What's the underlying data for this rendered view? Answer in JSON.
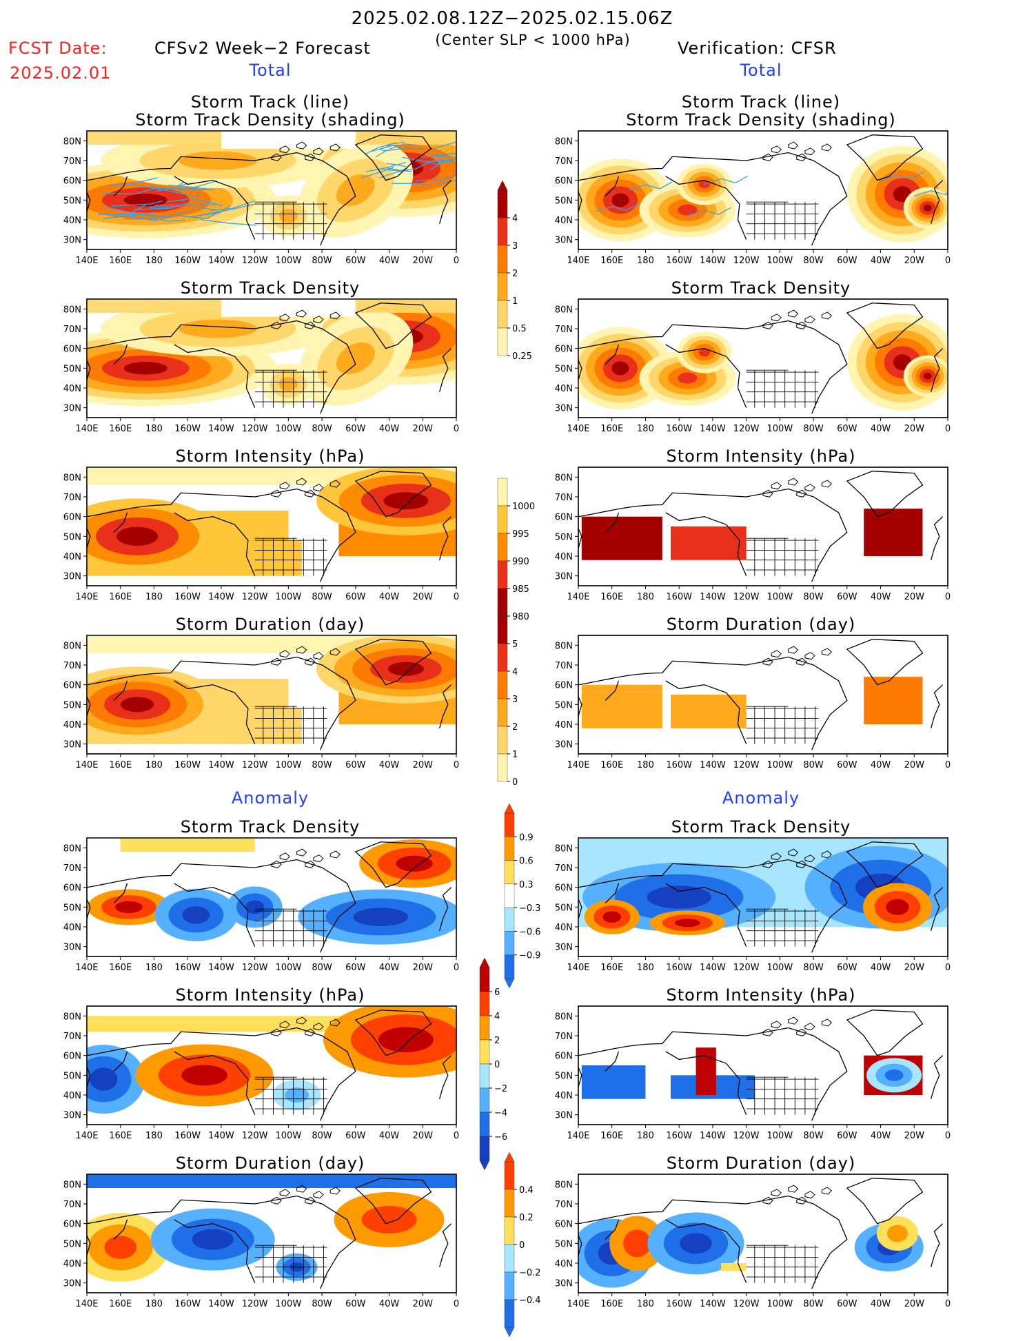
{
  "header": {
    "period": "2025.02.08.12Z−2025.02.15.06Z",
    "criterion": "(Center SLP < 1000 hPa)",
    "fcst_label": "FCST Date:",
    "fcst_date": "2025.02.01",
    "left_title": "CFSv2 Week−2 Forecast",
    "right_title": "Verification: CFSR"
  },
  "sections": {
    "total": "Total",
    "anomaly": "Anomaly"
  },
  "panel_titles": {
    "track_line": "Storm Track (line)",
    "track_shading": "Storm Track Density (shading)",
    "density": "Storm Track Density",
    "intensity": "Storm Intensity (hPa)",
    "duration": "Storm Duration (day)"
  },
  "axes": {
    "x_ticks": [
      "140E",
      "160E",
      "180",
      "160W",
      "140W",
      "120W",
      "100W",
      "80W",
      "60W",
      "40W",
      "20W",
      "0"
    ],
    "y_ticks": [
      "80N",
      "70N",
      "60N",
      "50N",
      "40N",
      "30N"
    ]
  },
  "colorbars": {
    "density_total": {
      "labels": [
        "4",
        "3",
        "2",
        "1",
        "0.5",
        "0.25"
      ],
      "colors": [
        "#a50000",
        "#e8301a",
        "#ff7a00",
        "#ffaa1c",
        "#ffd66a",
        "#fff5b0"
      ]
    },
    "intensity_total": {
      "labels": [
        "1000",
        "995",
        "990",
        "985",
        "980"
      ],
      "colors": [
        "#fff5b0",
        "#ffc63a",
        "#ff8c00",
        "#e8301a",
        "#a50000"
      ]
    },
    "duration_total": {
      "labels": [
        "5",
        "4",
        "3",
        "2",
        "1",
        "0"
      ],
      "colors": [
        "#a50000",
        "#e8301a",
        "#ff7a00",
        "#ffaa1c",
        "#ffd66a",
        "#fff5b0"
      ]
    },
    "density_anom": {
      "labels": [
        "0.9",
        "0.6",
        "0.3",
        "−0.3",
        "−0.6",
        "−0.9"
      ],
      "colors": [
        "#ff4000",
        "#ff9a00",
        "#ffe05a",
        "#ffffff",
        "#a8e6ff",
        "#55b0ff",
        "#1e6fe8"
      ]
    },
    "intensity_anom": {
      "labels": [
        "6",
        "4",
        "2",
        "0",
        "−2",
        "−4",
        "−6"
      ],
      "colors": [
        "#c00000",
        "#ff4000",
        "#ff9a00",
        "#ffe05a",
        "#a8e6ff",
        "#55b0ff",
        "#1e6fe8",
        "#1540c0"
      ]
    },
    "duration_anom": {
      "labels": [
        "0.4",
        "0.2",
        "0",
        "−0.2",
        "−0.4"
      ],
      "colors": [
        "#ff4000",
        "#ff9a00",
        "#ffe05a",
        "#a8e6ff",
        "#55b0ff",
        "#1e6fe8"
      ]
    }
  }
}
